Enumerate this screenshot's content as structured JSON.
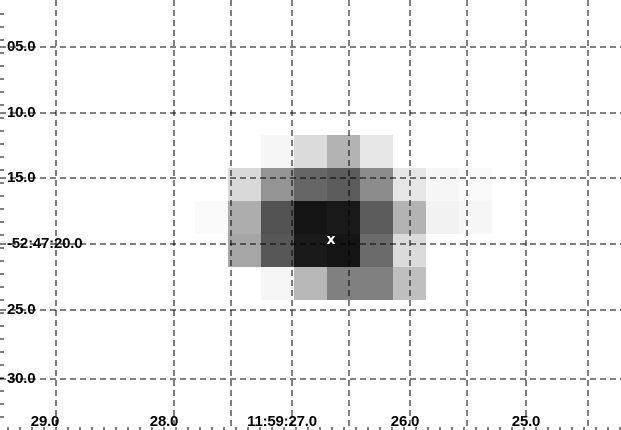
{
  "viewer": {
    "background": "#ffffff",
    "grid_color": "#000000",
    "marker_color": "#ffffff"
  },
  "marker": {
    "symbol": "x"
  },
  "axes": {
    "dec_labels": [
      "05.0",
      "10.0",
      "15.0",
      "-52:47:20.0",
      "25.0",
      "30.0"
    ],
    "ra_labels": [
      "29.0",
      "28.0",
      "11:59:27.0",
      "26.0",
      "25.0"
    ]
  },
  "image": {
    "intensity_rows": [
      [
        0.03,
        0.14,
        0.3,
        0.1
      ],
      [
        0.15,
        0.42,
        0.6,
        0.64,
        0.45,
        0.1,
        0.03,
        0.02
      ],
      [
        0.02,
        0.32,
        0.68,
        0.92,
        0.9,
        0.64,
        0.3,
        0.05,
        0.03
      ],
      [
        0.35,
        0.66,
        0.9,
        0.92,
        0.58,
        0.14
      ],
      [
        0.04,
        0.28,
        0.5,
        0.5,
        0.25
      ]
    ]
  }
}
